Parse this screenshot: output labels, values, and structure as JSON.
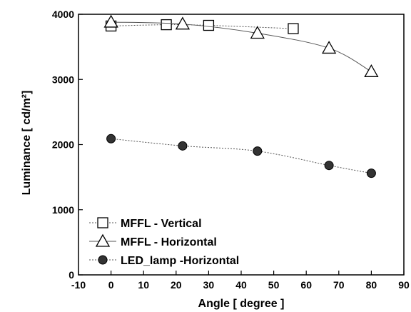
{
  "chart_data": {
    "type": "line",
    "xlabel": "Angle  [ degree ]",
    "ylabel": "Luminance  [ cd/m²]",
    "xlim": [
      -10,
      90
    ],
    "ylim": [
      0,
      4000
    ],
    "xticks": [
      -10,
      0,
      10,
      20,
      30,
      40,
      50,
      60,
      70,
      80,
      90
    ],
    "yticks": [
      0,
      1000,
      2000,
      3000,
      4000
    ],
    "grid": false,
    "legend_position": "bottom-left",
    "series": [
      {
        "name": "MFFL - Vertical",
        "marker": "square-open",
        "line": "dotted",
        "x": [
          0,
          17,
          30,
          56
        ],
        "y": [
          3820,
          3840,
          3830,
          3780
        ]
      },
      {
        "name": "MFFL - Horizontal",
        "marker": "triangle-open",
        "line": "solid",
        "x": [
          0,
          22,
          45,
          67,
          80
        ],
        "y": [
          3880,
          3850,
          3710,
          3480,
          3120
        ]
      },
      {
        "name": "LED_lamp -Horizontal",
        "marker": "circle-filled",
        "line": "dotted",
        "x": [
          0,
          22,
          45,
          67,
          80
        ],
        "y": [
          2090,
          1980,
          1900,
          1680,
          1560
        ]
      }
    ]
  }
}
